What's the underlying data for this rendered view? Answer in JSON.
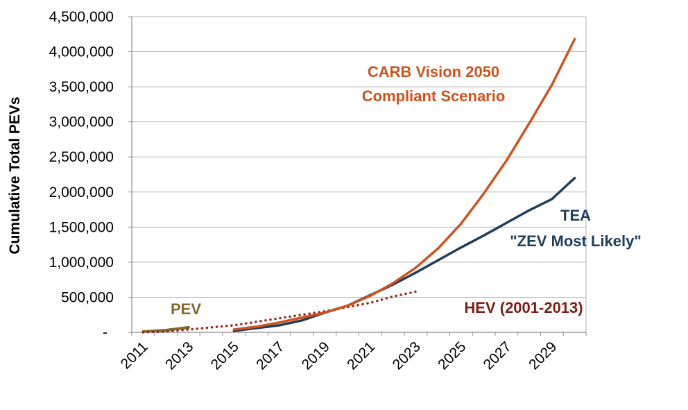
{
  "chart_data": {
    "type": "line",
    "ylabel": "Cumulative Total PEVs",
    "xlabel": "",
    "ylim": [
      0,
      4500000
    ],
    "xlim": [
      2011,
      2030
    ],
    "grid": true,
    "y_tick_labels": [
      "-",
      "500,000",
      "1,000,000",
      "1,500,000",
      "2,000,000",
      "2,500,000",
      "3,000,000",
      "3,500,000",
      "4,000,000",
      "4,500,000"
    ],
    "y_ticks": [
      0,
      500000,
      1000000,
      1500000,
      2000000,
      2500000,
      3000000,
      3500000,
      4000000,
      4500000
    ],
    "x_tick_labels": [
      "2011",
      "2013",
      "2015",
      "2017",
      "2019",
      "2021",
      "2023",
      "2025",
      "2027",
      "2029"
    ],
    "x_ticks": [
      2011,
      2013,
      2015,
      2017,
      2019,
      2021,
      2023,
      2025,
      2027,
      2029
    ],
    "series": [
      {
        "name": "PEV",
        "color": "#7f6a2e",
        "style": "solid",
        "x": [
          2011,
          2012,
          2013
        ],
        "y": [
          10000,
          30000,
          70000
        ]
      },
      {
        "name": "HEV (2001-2013)",
        "color": "#9b2a22",
        "style": "dotted",
        "x": [
          2011,
          2012,
          2013,
          2014,
          2015,
          2016,
          2017,
          2018,
          2019,
          2020,
          2021,
          2022,
          2023
        ],
        "y": [
          0,
          10000,
          40000,
          70000,
          100000,
          150000,
          200000,
          250000,
          300000,
          360000,
          420000,
          510000,
          580000
        ]
      },
      {
        "name": "TEA \"ZEV Most Likely\"",
        "color": "#1f3e5a",
        "style": "solid",
        "x": [
          2015,
          2016,
          2017,
          2018,
          2019,
          2020,
          2021,
          2022,
          2023,
          2024,
          2025,
          2026,
          2027,
          2028,
          2029,
          2030
        ],
        "y": [
          20000,
          60000,
          100000,
          170000,
          280000,
          380000,
          530000,
          680000,
          850000,
          1030000,
          1210000,
          1380000,
          1560000,
          1740000,
          1900000,
          2200000
        ]
      },
      {
        "name": "CARB Vision 2050 Compliant Scenario",
        "color": "#d0531f",
        "style": "solid",
        "x": [
          2015,
          2016,
          2017,
          2018,
          2019,
          2020,
          2021,
          2022,
          2023,
          2024,
          2025,
          2026,
          2027,
          2028,
          2029,
          2030
        ],
        "y": [
          40000,
          80000,
          140000,
          210000,
          280000,
          380000,
          520000,
          700000,
          920000,
          1200000,
          1550000,
          1980000,
          2450000,
          2980000,
          3530000,
          4180000
        ]
      }
    ],
    "annotations": [
      {
        "key": "carb_line1",
        "text": "CARB Vision 2050",
        "color": "#d0531f"
      },
      {
        "key": "carb_line2",
        "text": "Compliant  Scenario",
        "color": "#d0531f"
      },
      {
        "key": "tea_line1",
        "text": "TEA",
        "color": "#1f3e5a"
      },
      {
        "key": "tea_line2",
        "text": "\"ZEV Most Likely\"",
        "color": "#1f3e5a"
      },
      {
        "key": "hev",
        "text": "HEV (2001-2013)",
        "color": "#7b1f1a"
      },
      {
        "key": "pev",
        "text": "PEV",
        "color": "#7f6a2e"
      }
    ]
  }
}
